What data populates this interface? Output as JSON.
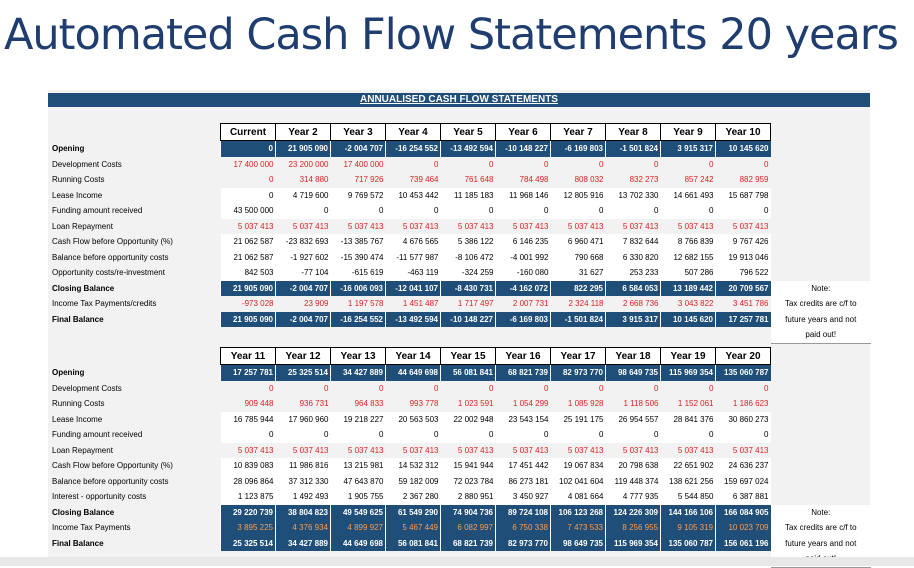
{
  "page_title": "Automated Cash Flow Statements 20 years",
  "banner": "ANNUALISED CASH FLOW STATEMENTS",
  "colors": {
    "header_blue": "#1f4e79",
    "negative_red": "#e02020",
    "title_blue": "#1f3d6e"
  },
  "table1": {
    "headers": [
      "Current",
      "Year 2",
      "Year 3",
      "Year 4",
      "Year 5",
      "Year 6",
      "Year 7",
      "Year 8",
      "Year 9",
      "Year 10"
    ],
    "note_lines": [
      "Note:",
      "Tax credits are c/f to",
      "future years and not",
      "paid out!"
    ],
    "rows": [
      {
        "label": "Opening",
        "style": "blue",
        "values": [
          "0",
          "21 905 090",
          "-2 004 707",
          "-16 254 552",
          "-13 492 594",
          "-10 148 227",
          "-6 169 803",
          "-1 501 824",
          "3 915 317",
          "10 145 620"
        ]
      },
      {
        "label": "Development Costs",
        "style": "red",
        "values": [
          "17 400 000",
          "23 200 000",
          "17 400 000",
          "0",
          "0",
          "0",
          "0",
          "0",
          "0",
          "0"
        ]
      },
      {
        "label": "Running Costs",
        "style": "red",
        "values": [
          "0",
          "314 880",
          "717 926",
          "739 464",
          "761 648",
          "784 498",
          "808 032",
          "832 273",
          "857 242",
          "882 959"
        ]
      },
      {
        "label": "Lease Income",
        "style": "white",
        "values": [
          "0",
          "4 719 600",
          "9 769 572",
          "10 453 442",
          "11 185 183",
          "11 968 146",
          "12 805 916",
          "13 702 330",
          "14 661 493",
          "15 687 798"
        ]
      },
      {
        "label": "Funding amount received",
        "style": "white",
        "values": [
          "43 500 000",
          "0",
          "0",
          "0",
          "0",
          "0",
          "0",
          "0",
          "0",
          "0"
        ]
      },
      {
        "label": "Loan Repayment",
        "style": "red",
        "values": [
          "5 037 413",
          "5 037 413",
          "5 037 413",
          "5 037 413",
          "5 037 413",
          "5 037 413",
          "5 037 413",
          "5 037 413",
          "5 037 413",
          "5 037 413"
        ]
      },
      {
        "label": "Cash Flow before Opportunity (%)",
        "style": "white",
        "values": [
          "21 062 587",
          "-23 832 693",
          "-13 385 767",
          "4 676 565",
          "5 386 122",
          "6 146 235",
          "6 960 471",
          "7 832 644",
          "8 766 839",
          "9 767 426"
        ]
      },
      {
        "label": "Balance before opportunity costs",
        "style": "white",
        "values": [
          "21 062 587",
          "-1 927 602",
          "-15 390 474",
          "-11 577 987",
          "-8 106 472",
          "-4 001 992",
          "790 668",
          "6 330 820",
          "12 682 155",
          "19 913 046"
        ]
      },
      {
        "label": "Opportunity costs/re-investment",
        "style": "white",
        "values": [
          "842 503",
          "-77 104",
          "-615 619",
          "-463 119",
          "-324 259",
          "-160 080",
          "31 627",
          "253 233",
          "507 286",
          "796 522"
        ]
      },
      {
        "label": "Closing Balance",
        "style": "blue",
        "values": [
          "21 905 090",
          "-2 004 707",
          "-16 006 093",
          "-12 041 107",
          "-8 430 731",
          "-4 162 072",
          "822 295",
          "6 584 053",
          "13 189 442",
          "20 709 567"
        ]
      },
      {
        "label": "Income Tax Payments/credits",
        "style": "red",
        "values": [
          "-973 028",
          "23 909",
          "1 197 578",
          "1 451 487",
          "1 717 497",
          "2 007 731",
          "2 324 118",
          "2 668 736",
          "3 043 822",
          "3 451 786"
        ]
      },
      {
        "label": "Final Balance",
        "style": "blue",
        "values": [
          "21 905 090",
          "-2 004 707",
          "-16 254 552",
          "-13 492 594",
          "-10 148 227",
          "-6 169 803",
          "-1 501 824",
          "3 915 317",
          "10 145 620",
          "17 257 781"
        ]
      }
    ]
  },
  "table2": {
    "headers": [
      "Year 11",
      "Year 12",
      "Year 13",
      "Year 14",
      "Year 15",
      "Year 16",
      "Year 17",
      "Year 18",
      "Year 19",
      "Year 20"
    ],
    "note_lines": [
      "Note:",
      "Tax credits are c/f to",
      "future years and not",
      "paid out!"
    ],
    "rows": [
      {
        "label": "Opening",
        "style": "blue",
        "values": [
          "17 257 781",
          "25 325 514",
          "34 427 889",
          "44 649 698",
          "56 081 841",
          "68 821 739",
          "82 973 770",
          "98 649 735",
          "115 969 354",
          "135 060 787"
        ]
      },
      {
        "label": "Development Costs",
        "style": "red",
        "values": [
          "0",
          "0",
          "0",
          "0",
          "0",
          "0",
          "0",
          "0",
          "0",
          "0"
        ]
      },
      {
        "label": "Running Costs",
        "style": "red",
        "values": [
          "909 448",
          "936 731",
          "964 833",
          "993 778",
          "1 023 591",
          "1 054 299",
          "1 085 928",
          "1 118 506",
          "1 152 061",
          "1 186 623"
        ]
      },
      {
        "label": "Lease Income",
        "style": "white",
        "values": [
          "16 785 944",
          "17 960 960",
          "19 218 227",
          "20 563 503",
          "22 002 948",
          "23 543 154",
          "25 191 175",
          "26 954 557",
          "28 841 376",
          "30 860 273"
        ]
      },
      {
        "label": "Funding amount received",
        "style": "white",
        "values": [
          "0",
          "0",
          "0",
          "0",
          "0",
          "0",
          "0",
          "0",
          "0",
          "0"
        ]
      },
      {
        "label": "Loan Repayment",
        "style": "red",
        "values": [
          "5 037 413",
          "5 037 413",
          "5 037 413",
          "5 037 413",
          "5 037 413",
          "5 037 413",
          "5 037 413",
          "5 037 413",
          "5 037 413",
          "5 037 413"
        ]
      },
      {
        "label": "Cash Flow before Opportunity (%)",
        "style": "white",
        "values": [
          "10 839 083",
          "11 986 816",
          "13 215 981",
          "14 532 312",
          "15 941 944",
          "17 451 442",
          "19 067 834",
          "20 798 638",
          "22 651 902",
          "24 636 237"
        ]
      },
      {
        "label": "Balance before opportunity costs",
        "style": "white",
        "values": [
          "28 096 864",
          "37 312 330",
          "47 643 870",
          "59 182 009",
          "72 023 784",
          "86 273 181",
          "102 041 604",
          "119 448 374",
          "138 621 256",
          "159 697 024"
        ]
      },
      {
        "label": "Interest - opportunity costs",
        "style": "white",
        "values": [
          "1 123 875",
          "1 492 493",
          "1 905 755",
          "2 367 280",
          "2 880 951",
          "3 450 927",
          "4 081 664",
          "4 777 935",
          "5 544 850",
          "6 387 881"
        ]
      },
      {
        "label": "Closing Balance",
        "style": "blue",
        "values": [
          "29 220 739",
          "38 804 823",
          "49 549 625",
          "61 549 290",
          "74 904 736",
          "89 724 108",
          "106 123 268",
          "124 226 309",
          "144 166 106",
          "166 084 905"
        ]
      },
      {
        "label": "Income Tax Payments",
        "style": "orange",
        "values": [
          "3 895 225",
          "4 376 934",
          "4 899 927",
          "5 467 449",
          "6 082 997",
          "6 750 338",
          "7 473 533",
          "8 256 955",
          "9 105 319",
          "10 023 709"
        ]
      },
      {
        "label": "Final Balance",
        "style": "blue",
        "values": [
          "25 325 514",
          "34 427 889",
          "44 649 698",
          "56 081 841",
          "68 821 739",
          "82 973 770",
          "98 649 735",
          "115 969 354",
          "135 060 787",
          "156 061 196"
        ]
      }
    ]
  }
}
